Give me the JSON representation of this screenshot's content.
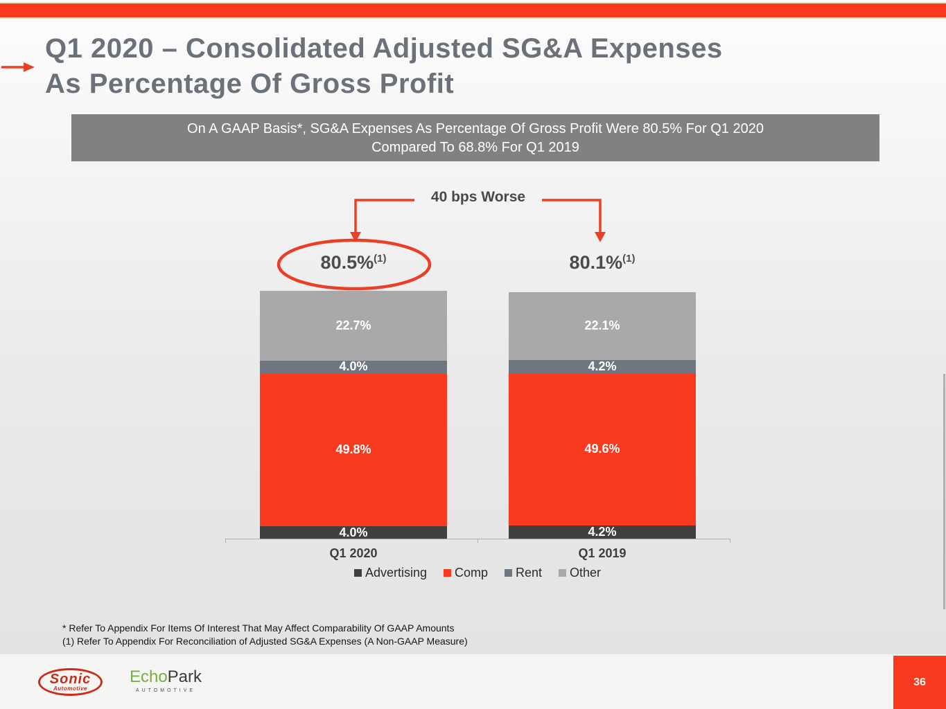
{
  "slide": {
    "title_line1": "Q1 2020 – Consolidated Adjusted SG&A Expenses",
    "title_line2": "As Percentage Of Gross Profit",
    "banner_line1": "On A GAAP Basis*, SG&A Expenses As Percentage Of Gross Profit Were 80.5% For Q1 2020",
    "banner_line2": "Compared To 68.8% For Q1 2019",
    "annotation": "40 bps Worse",
    "footnote_line1": "* Refer To Appendix For Items Of Interest That May Affect Comparability Of GAAP Amounts",
    "footnote_line2": "(1) Refer To Appendix For Reconciliation of Adjusted SG&A Expenses (A Non-GAAP Measure)",
    "page_number": "36"
  },
  "colors": {
    "accent_red": "#fa3a1e",
    "title_gray": "#6a7179",
    "banner_gray": "#818181"
  },
  "chart_data": {
    "type": "bar",
    "stacked": true,
    "unit": "%",
    "title": "Consolidated Adjusted SG&A Expenses As Percentage Of Gross Profit",
    "categories": [
      "Q1 2020",
      "Q1 2019"
    ],
    "series": [
      {
        "name": "Advertising",
        "color": "#404040",
        "values": [
          4.0,
          4.2
        ]
      },
      {
        "name": "Comp",
        "color": "#fa3a1e",
        "values": [
          49.8,
          49.6
        ]
      },
      {
        "name": "Rent",
        "color": "#6e7780",
        "values": [
          4.0,
          4.2
        ]
      },
      {
        "name": "Other",
        "color": "#a9a9ab",
        "values": [
          22.7,
          22.1
        ]
      }
    ],
    "totals": [
      "80.5%",
      "80.1%"
    ],
    "total_superscript": "(1)",
    "highlighted_category": "Q1 2020",
    "legend_position": "bottom",
    "axis": {
      "y_hidden": true,
      "x_baseline": true
    }
  },
  "footer": {
    "sonic_name": "Sonic",
    "sonic_sub": "Automotive",
    "echopark_green": "Echo",
    "echopark_dark": "Park",
    "echopark_sub": "AUTOMOTIVE"
  }
}
